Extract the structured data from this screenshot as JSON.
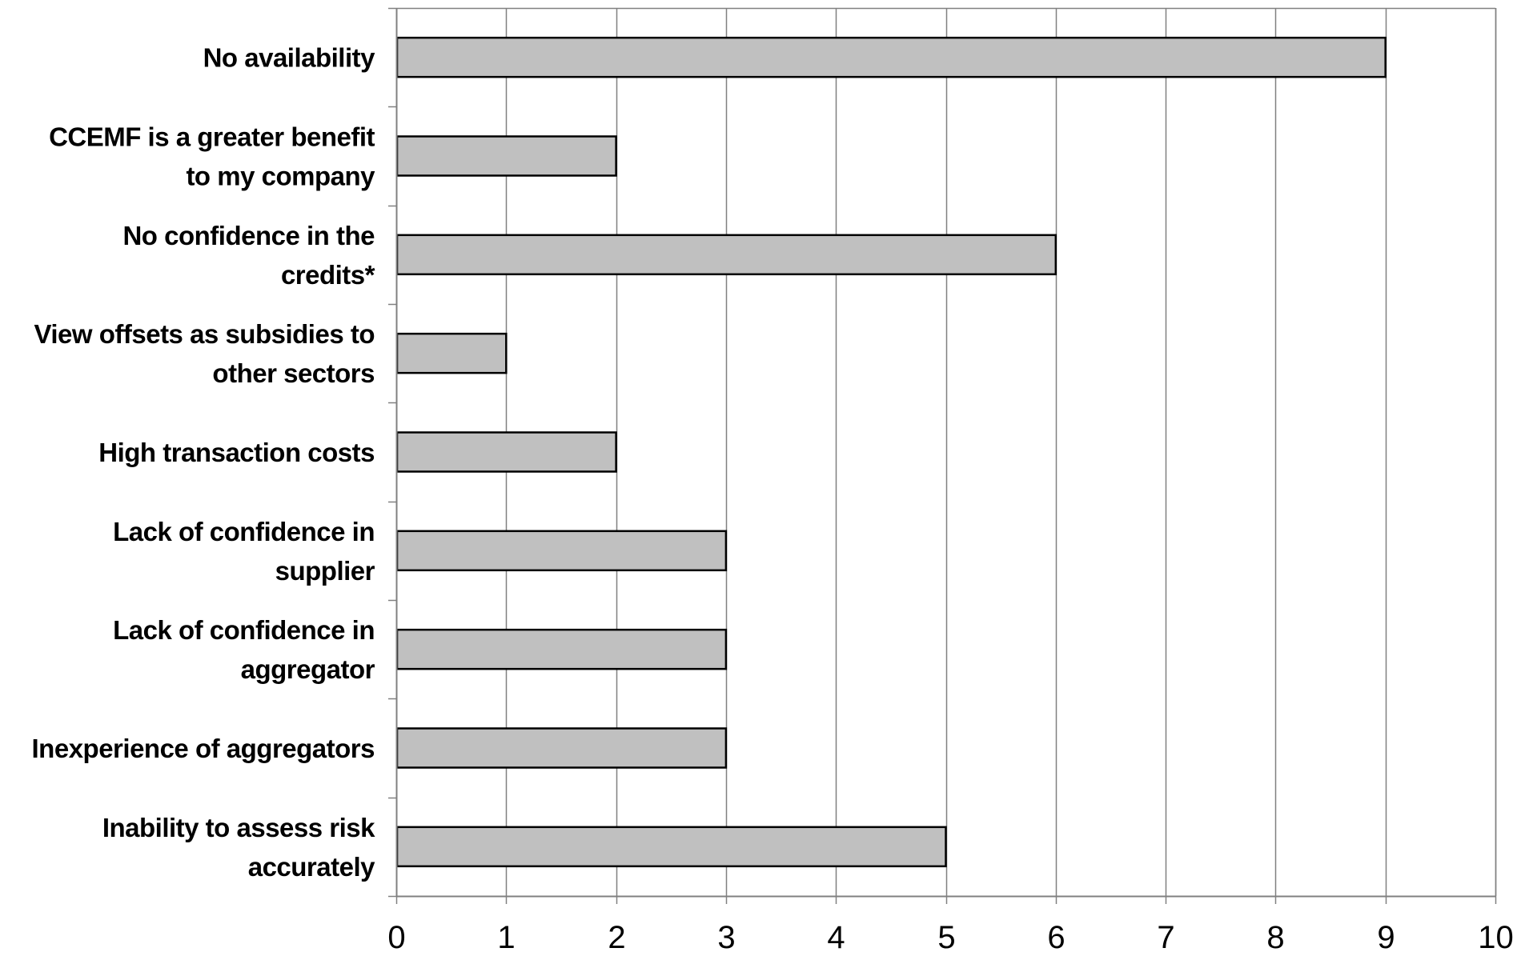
{
  "chart_data": {
    "type": "bar",
    "orientation": "horizontal",
    "categories": [
      [
        "No availability"
      ],
      [
        "CCEMF is a greater benefit",
        "to my company"
      ],
      [
        "No confidence in the",
        "credits*"
      ],
      [
        "View offsets as subsidies to",
        "other sectors"
      ],
      [
        "High transaction costs"
      ],
      [
        "Lack of confidence in",
        "supplier"
      ],
      [
        "Lack of confidence in",
        "aggregator"
      ],
      [
        "Inexperience of aggregators"
      ],
      [
        "Inability to assess risk",
        "accurately"
      ]
    ],
    "values": [
      9,
      2,
      6,
      1,
      2,
      3,
      3,
      3,
      5
    ],
    "xlim": [
      0,
      10
    ],
    "xticks": [
      "0",
      "1",
      "2",
      "3",
      "4",
      "5",
      "6",
      "7",
      "8",
      "9",
      "10"
    ],
    "grid": "vertical",
    "legend": "none",
    "title": "",
    "xlabel": "",
    "ylabel": "",
    "colors": {
      "bar_fill": "#c0c0c0",
      "bar_stroke": "#000000",
      "grid": "#808080",
      "axis": "#808080"
    }
  }
}
